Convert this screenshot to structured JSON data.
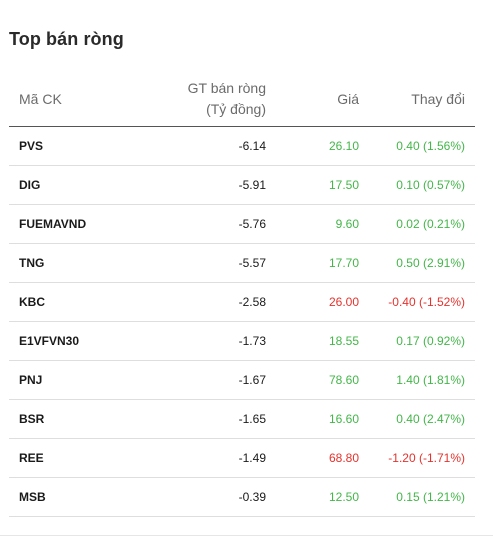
{
  "title": "Top bán ròng",
  "columns": {
    "code": "Mã CK",
    "value_line1": "GT bán ròng",
    "value_line2": "(Tỷ đồng)",
    "price": "Giá",
    "change": "Thay đổi"
  },
  "colors": {
    "up": "#43b649",
    "down": "#e5322d"
  },
  "rows": [
    {
      "code": "PVS",
      "value": "-6.14",
      "price": "26.10",
      "change": "0.40 (1.56%)",
      "trend": "up"
    },
    {
      "code": "DIG",
      "value": "-5.91",
      "price": "17.50",
      "change": "0.10 (0.57%)",
      "trend": "up"
    },
    {
      "code": "FUEMAVND",
      "value": "-5.76",
      "price": "9.60",
      "change": "0.02 (0.21%)",
      "trend": "up"
    },
    {
      "code": "TNG",
      "value": "-5.57",
      "price": "17.70",
      "change": "0.50 (2.91%)",
      "trend": "up"
    },
    {
      "code": "KBC",
      "value": "-2.58",
      "price": "26.00",
      "change": "-0.40 (-1.52%)",
      "trend": "down"
    },
    {
      "code": "E1VFVN30",
      "value": "-1.73",
      "price": "18.55",
      "change": "0.17 (0.92%)",
      "trend": "up"
    },
    {
      "code": "PNJ",
      "value": "-1.67",
      "price": "78.60",
      "change": "1.40 (1.81%)",
      "trend": "up"
    },
    {
      "code": "BSR",
      "value": "-1.65",
      "price": "16.60",
      "change": "0.40 (2.47%)",
      "trend": "up"
    },
    {
      "code": "REE",
      "value": "-1.49",
      "price": "68.80",
      "change": "-1.20 (-1.71%)",
      "trend": "down"
    },
    {
      "code": "MSB",
      "value": "-0.39",
      "price": "12.50",
      "change": "0.15 (1.21%)",
      "trend": "up"
    }
  ]
}
